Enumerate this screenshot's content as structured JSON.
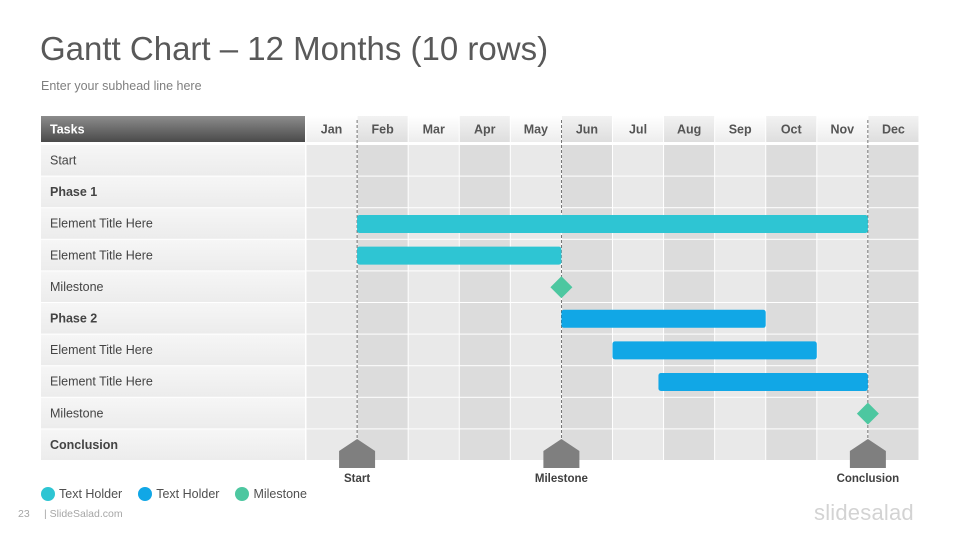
{
  "slide": {
    "title": "Gantt Chart – 12 Months (10 rows)",
    "subtitle": "Enter your subhead line here",
    "page_number": "23",
    "site": "| SlideSalad.com",
    "brand": "slidesalad"
  },
  "colors": {
    "bar_teal": "#2ec5d3",
    "bar_blue": "#11a7e6",
    "milestone": "#4dc7a0",
    "marker": "#7f7f7f"
  },
  "legend": [
    {
      "label": "Text Holder",
      "color": "#2ec5d3"
    },
    {
      "label": "Text Holder",
      "color": "#11a7e6"
    },
    {
      "label": "Milestone",
      "color": "#4dc7a0"
    }
  ],
  "chart_data": {
    "type": "gantt",
    "task_header": "Tasks",
    "months": [
      "Jan",
      "Feb",
      "Mar",
      "Apr",
      "May",
      "Jun",
      "Jul",
      "Aug",
      "Sep",
      "Oct",
      "Nov",
      "Dec"
    ],
    "rows": [
      {
        "label": "Start",
        "bold": false
      },
      {
        "label": "Phase 1",
        "bold": true
      },
      {
        "label": "Element Title Here",
        "bold": false
      },
      {
        "label": "Element Title Here",
        "bold": false
      },
      {
        "label": "Milestone",
        "bold": false
      },
      {
        "label": "Phase 2",
        "bold": true
      },
      {
        "label": "Element Title Here",
        "bold": false
      },
      {
        "label": "Element Title Here",
        "bold": false
      },
      {
        "label": "Milestone",
        "bold": false
      },
      {
        "label": "Conclusion",
        "bold": true
      }
    ],
    "bars": [
      {
        "row": 2,
        "start": 1,
        "end": 11,
        "color": "#2ec5d3"
      },
      {
        "row": 3,
        "start": 1,
        "end": 5,
        "color": "#2ec5d3"
      },
      {
        "row": 5,
        "start": 5,
        "end": 9,
        "color": "#11a7e6"
      },
      {
        "row": 6,
        "start": 6,
        "end": 10,
        "color": "#11a7e6"
      },
      {
        "row": 7,
        "start": 6.9,
        "end": 11,
        "color": "#11a7e6"
      }
    ],
    "milestones": [
      {
        "row": 4,
        "at": 5
      },
      {
        "row": 8,
        "at": 11
      }
    ],
    "markers": [
      {
        "at": 1,
        "label": "Start"
      },
      {
        "at": 5,
        "label": "Milestone"
      },
      {
        "at": 11,
        "label": "Conclusion"
      }
    ]
  }
}
